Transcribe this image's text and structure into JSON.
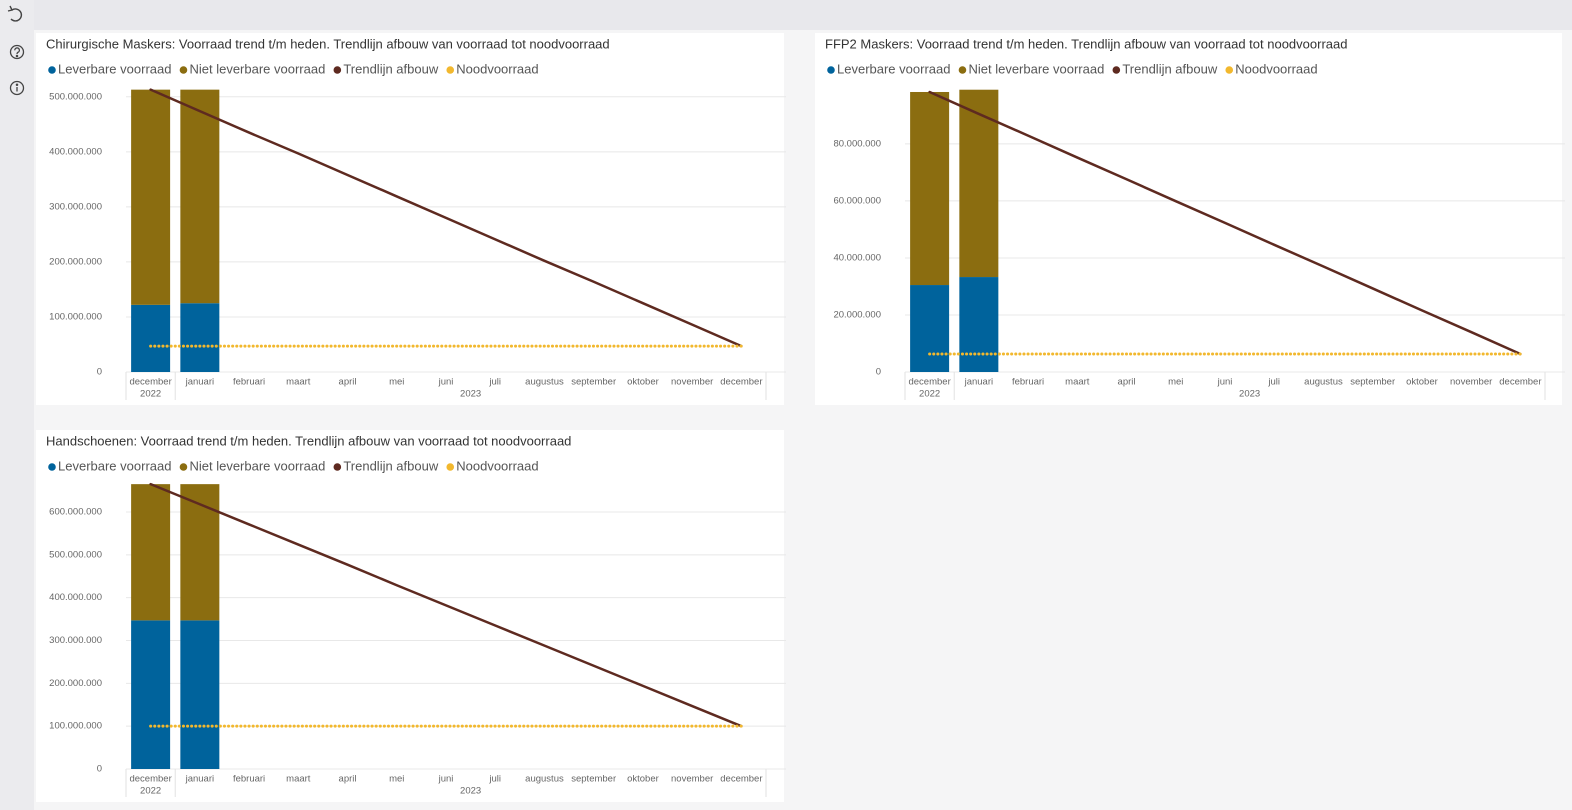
{
  "chart_data": [
    {
      "type": "bar",
      "title": "Chirurgische Maskers: Voorraad trend t/m heden. Trendlijn afbouw van voorraad tot noodvoorraad",
      "categories": [
        "december",
        "januari",
        "februari",
        "maart",
        "april",
        "mei",
        "juni",
        "juli",
        "augustus",
        "september",
        "oktober",
        "november",
        "december"
      ],
      "years": [
        "2022",
        "2023"
      ],
      "series": [
        {
          "name": "Leverbare voorraad",
          "type": "bar",
          "color": "#00639c",
          "values": [
            122000000,
            125000000,
            null,
            null,
            null,
            null,
            null,
            null,
            null,
            null,
            null,
            null,
            null
          ]
        },
        {
          "name": "Niet leverbare voorraad",
          "type": "bar",
          "color": "#8b6d10",
          "values": [
            391000000,
            388000000,
            null,
            null,
            null,
            null,
            null,
            null,
            null,
            null,
            null,
            null,
            null
          ]
        },
        {
          "name": "Trendlijn afbouw",
          "type": "line",
          "color": "#5e2a20",
          "values": [
            513000000,
            474000000,
            435000000,
            397000000,
            358000000,
            319000000,
            280000000,
            241000000,
            202000000,
            164000000,
            125000000,
            86000000,
            47000000
          ]
        },
        {
          "name": "Noodvoorraad",
          "type": "line",
          "style": "dotted",
          "color": "#f2b82e",
          "values": [
            47000000,
            47000000,
            47000000,
            47000000,
            47000000,
            47000000,
            47000000,
            47000000,
            47000000,
            47000000,
            47000000,
            47000000,
            47000000
          ]
        }
      ],
      "ylim": [
        0,
        516000000
      ],
      "yticks": [
        0,
        {
          "value": 100000000,
          "label": "100.000.000"
        },
        {
          "value": 200000000,
          "label": "200.000.000"
        },
        {
          "value": 300000000,
          "label": "300.000.000"
        },
        {
          "value": 400000000,
          "label": "400.000.000"
        },
        {
          "value": 500000000,
          "label": "500.000.000"
        }
      ],
      "grid": true
    },
    {
      "type": "bar",
      "title": "FFP2 Maskers: Voorraad trend t/m heden. Trendlijn afbouw van voorraad tot noodvoorraad",
      "categories": [
        "december",
        "januari",
        "februari",
        "maart",
        "april",
        "mei",
        "juni",
        "juli",
        "augustus",
        "september",
        "oktober",
        "november",
        "december"
      ],
      "years": [
        "2022",
        "2023"
      ],
      "series": [
        {
          "name": "Leverbare voorraad",
          "type": "bar",
          "color": "#00639c",
          "values": [
            30500000,
            33300000,
            null,
            null,
            null,
            null,
            null,
            null,
            null,
            null,
            null,
            null,
            null
          ]
        },
        {
          "name": "Niet leverbare voorraad",
          "type": "bar",
          "color": "#8b6d10",
          "values": [
            67700000,
            65700000,
            null,
            null,
            null,
            null,
            null,
            null,
            null,
            null,
            null,
            null,
            null
          ]
        },
        {
          "name": "Trendlijn afbouw",
          "type": "line",
          "color": "#5e2a20",
          "values": [
            98200000,
            90500000,
            82900000,
            75200000,
            67600000,
            59900000,
            52300000,
            44600000,
            37000000,
            29300000,
            21600000,
            14000000,
            6300000
          ]
        },
        {
          "name": "Noodvoorraad",
          "type": "line",
          "style": "dotted",
          "color": "#f2b82e",
          "values": [
            6300000,
            6300000,
            6300000,
            6300000,
            6300000,
            6300000,
            6300000,
            6300000,
            6300000,
            6300000,
            6300000,
            6300000,
            6300000
          ]
        }
      ],
      "ylim": [
        0,
        99600000
      ],
      "yticks": [
        0,
        {
          "value": 20000000,
          "label": "20.000.000"
        },
        {
          "value": 40000000,
          "label": "40.000.000"
        },
        {
          "value": 60000000,
          "label": "60.000.000"
        },
        {
          "value": 80000000,
          "label": "80.000.000"
        }
      ],
      "grid": true
    },
    {
      "type": "bar",
      "title": "Handschoenen: Voorraad trend t/m heden. Trendlijn afbouw van voorraad tot noodvoorraad",
      "categories": [
        "december",
        "januari",
        "februari",
        "maart",
        "april",
        "mei",
        "juni",
        "juli",
        "augustus",
        "september",
        "oktober",
        "november",
        "december"
      ],
      "years": [
        "2022",
        "2023"
      ],
      "series": [
        {
          "name": "Leverbare voorraad",
          "type": "bar",
          "color": "#00639c",
          "values": [
            347000000,
            347000000,
            null,
            null,
            null,
            null,
            null,
            null,
            null,
            null,
            null,
            null,
            null
          ]
        },
        {
          "name": "Niet leverbare voorraad",
          "type": "bar",
          "color": "#8b6d10",
          "values": [
            318000000,
            318000000,
            null,
            null,
            null,
            null,
            null,
            null,
            null,
            null,
            null,
            null,
            null
          ]
        },
        {
          "name": "Trendlijn afbouw",
          "type": "line",
          "color": "#5e2a20",
          "values": [
            665000000,
            618000000,
            571000000,
            524000000,
            477000000,
            429000000,
            382000000,
            335000000,
            288000000,
            241000000,
            194000000,
            147000000,
            100000000
          ]
        },
        {
          "name": "Noodvoorraad",
          "type": "line",
          "style": "dotted",
          "color": "#f2b82e",
          "values": [
            100000000,
            100000000,
            100000000,
            100000000,
            100000000,
            100000000,
            100000000,
            100000000,
            100000000,
            100000000,
            100000000,
            100000000,
            100000000
          ]
        }
      ],
      "ylim": [
        0,
        663000000
      ],
      "yticks": [
        0,
        {
          "value": 100000000,
          "label": "100.000.000"
        },
        {
          "value": 200000000,
          "label": "200.000.000"
        },
        {
          "value": 300000000,
          "label": "300.000.000"
        },
        {
          "value": 400000000,
          "label": "400.000.000"
        },
        {
          "value": 500000000,
          "label": "500.000.000"
        },
        {
          "value": 600000000,
          "label": "600.000.000"
        }
      ],
      "grid": true
    }
  ]
}
